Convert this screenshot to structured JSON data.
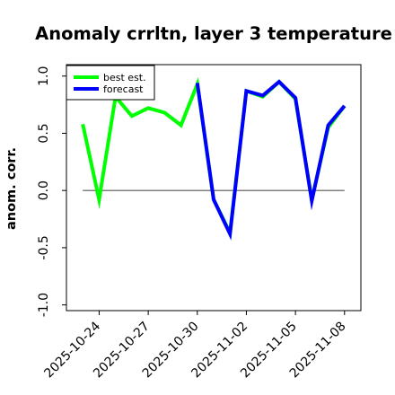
{
  "chart_data": {
    "type": "line",
    "title": "Anomaly crrltn, layer 3 temperature",
    "xlabel": "",
    "ylabel": "anom. corr.",
    "ylim": [
      -1.05,
      1.1
    ],
    "yticks": [
      -1.0,
      -0.5,
      0.0,
      0.5,
      1.0
    ],
    "ytick_labels": [
      "-1.0",
      "-0.5",
      "0.0",
      "0.5",
      "1.0"
    ],
    "x_dates": [
      "2025-10-23",
      "2025-10-24",
      "2025-10-25",
      "2025-10-26",
      "2025-10-27",
      "2025-10-28",
      "2025-10-29",
      "2025-10-30",
      "2025-10-31",
      "2025-11-01",
      "2025-11-02",
      "2025-11-03",
      "2025-11-04",
      "2025-11-05",
      "2025-11-06",
      "2025-11-07",
      "2025-11-08"
    ],
    "xlim": [
      "2025-10-22",
      "2025-11-09"
    ],
    "xtick_labels": [
      "2025-10-24",
      "2025-10-27",
      "2025-10-30",
      "2025-11-02",
      "2025-11-05",
      "2025-11-08"
    ],
    "xtick_colors": [
      "#000000",
      "#000000",
      "#008000",
      "#000000",
      "#000000",
      "#000000"
    ],
    "hline": 0.0,
    "legend_position": "top-left",
    "series": [
      {
        "name": "best est.",
        "color": "#00ff00",
        "values": [
          0.58,
          -0.08,
          0.82,
          0.65,
          0.72,
          0.68,
          0.57,
          0.93,
          -0.08,
          -0.37,
          0.87,
          0.82,
          0.95,
          0.8,
          -0.08,
          0.55,
          0.74
        ]
      },
      {
        "name": "forecast",
        "color": "#0000ff",
        "values": [
          null,
          null,
          null,
          null,
          null,
          null,
          null,
          0.94,
          -0.08,
          -0.38,
          0.87,
          0.83,
          0.95,
          0.81,
          -0.09,
          0.57,
          0.74
        ]
      }
    ],
    "grid": false
  }
}
